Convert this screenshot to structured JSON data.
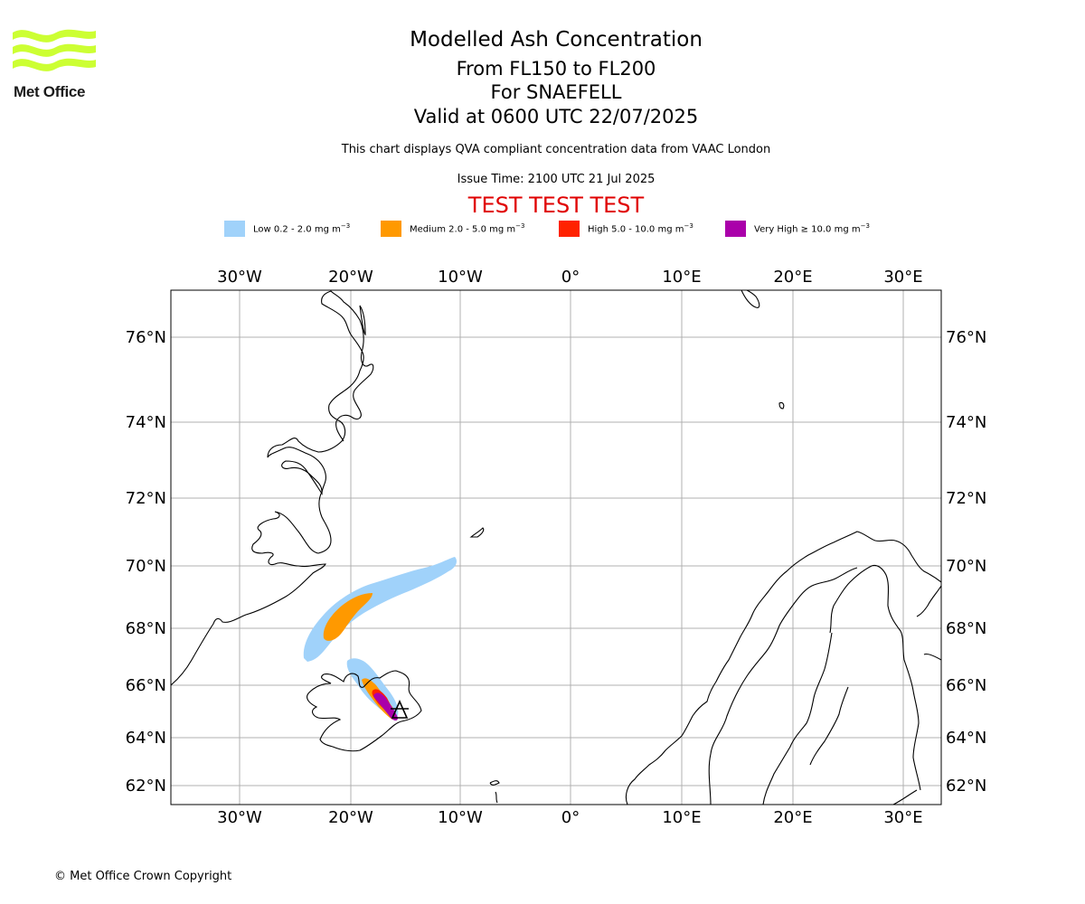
{
  "brand": {
    "name": "Met Office",
    "logo_color": "#ccff33"
  },
  "header": {
    "title": "Modelled Ash Concentration",
    "level_range": "From FL150 to FL200",
    "volcano": "For SNAEFELL",
    "valid_time": "Valid at 0600 UTC 22/07/2025",
    "description": "This chart displays QVA compliant concentration data from VAAC London",
    "issue_time": "Issue Time: 2100 UTC 21 Jul 2025",
    "test_banner": "TEST TEST TEST"
  },
  "legend": [
    {
      "label": "Low 0.2 - 2.0 mg m",
      "color": "#a0d2fa"
    },
    {
      "label": "Medium 2.0 - 5.0 mg m",
      "color": "#ff9900"
    },
    {
      "label": "High 5.0 - 10.0 mg m",
      "color": "#ff2200"
    },
    {
      "label": "Very High ≥ 10.0 mg m",
      "color": "#aa00aa"
    }
  ],
  "legend_unit_exponent": "−3",
  "map": {
    "lon_ticks": [
      "30°W",
      "20°W",
      "10°W",
      "0°",
      "10°E",
      "20°E",
      "30°E"
    ],
    "lat_ticks": [
      "76°N",
      "74°N",
      "72°N",
      "70°N",
      "68°N",
      "66°N",
      "64°N",
      "62°N"
    ],
    "grid": true,
    "volcano_marker": "triangle-marker"
  },
  "footer": {
    "copyright": "© Met Office Crown Copyright"
  }
}
